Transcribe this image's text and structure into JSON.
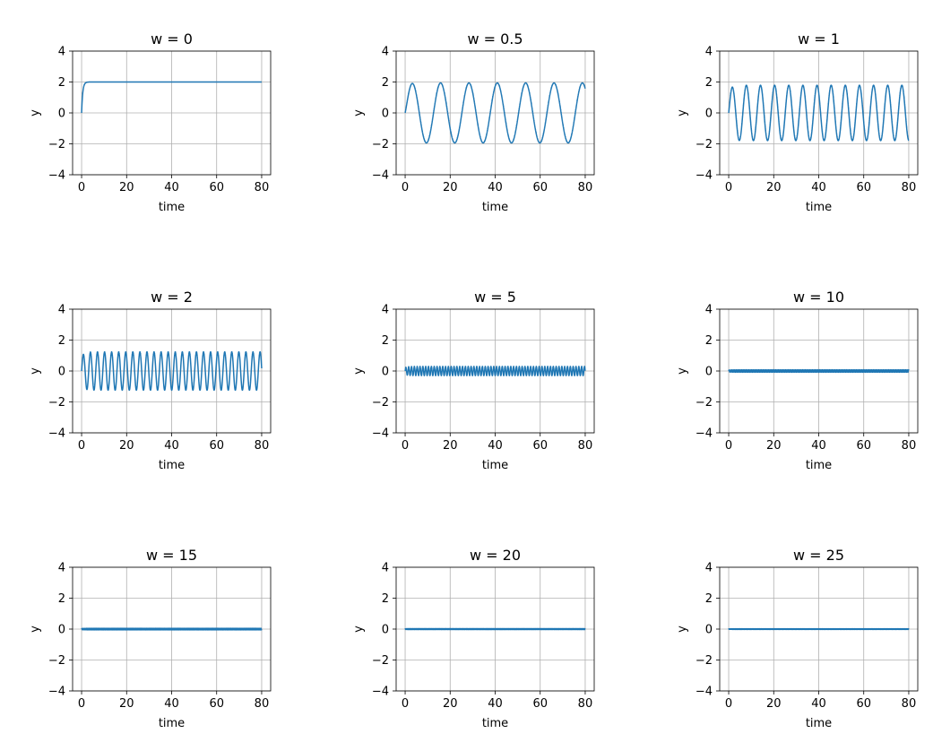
{
  "figure": {
    "background": "#ffffff",
    "series_color": "#1f77b4",
    "grid_color": "#b0b0b0"
  },
  "chart_data": [
    {
      "type": "line",
      "title": "w = 0",
      "xlabel": "time",
      "ylabel": "y",
      "xlim": [
        -4,
        84
      ],
      "ylim": [
        -4,
        4
      ],
      "xticks": [
        0,
        20,
        40,
        60,
        80
      ],
      "yticks": [
        -4,
        -2,
        0,
        2,
        4
      ],
      "xtick_labels": [
        "0",
        "20",
        "40",
        "60",
        "80"
      ],
      "ytick_labels": [
        "−4",
        "−2",
        "0",
        "2",
        "4"
      ],
      "grid": true,
      "series": [
        {
          "kind": "step_response",
          "w": 0,
          "x_range": [
            0,
            80
          ],
          "steady": 2.0,
          "time_constant": 0.5
        }
      ]
    },
    {
      "type": "line",
      "title": "w = 0.5",
      "xlabel": "time",
      "ylabel": "y",
      "xlim": [
        -4,
        84
      ],
      "ylim": [
        -4,
        4
      ],
      "xticks": [
        0,
        20,
        40,
        60,
        80
      ],
      "yticks": [
        -4,
        -2,
        0,
        2,
        4
      ],
      "xtick_labels": [
        "0",
        "20",
        "40",
        "60",
        "80"
      ],
      "ytick_labels": [
        "−4",
        "−2",
        "0",
        "2",
        "4"
      ],
      "grid": true,
      "series": [
        {
          "kind": "sine",
          "w": 0.5,
          "x_range": [
            0,
            80
          ],
          "amplitude": 1.94,
          "period": 12.6
        }
      ]
    },
    {
      "type": "line",
      "title": "w = 1",
      "xlabel": "time",
      "ylabel": "y",
      "xlim": [
        -4,
        84
      ],
      "ylim": [
        -4,
        4
      ],
      "xticks": [
        0,
        20,
        40,
        60,
        80
      ],
      "yticks": [
        -4,
        -2,
        0,
        2,
        4
      ],
      "xtick_labels": [
        "0",
        "20",
        "40",
        "60",
        "80"
      ],
      "ytick_labels": [
        "−4",
        "−2",
        "0",
        "2",
        "4"
      ],
      "grid": true,
      "series": [
        {
          "kind": "sine",
          "w": 1,
          "x_range": [
            0,
            80
          ],
          "amplitude": 1.79,
          "period": 6.28
        }
      ]
    },
    {
      "type": "line",
      "title": "w = 2",
      "xlabel": "time",
      "ylabel": "y",
      "xlim": [
        -4,
        84
      ],
      "ylim": [
        -4,
        4
      ],
      "xticks": [
        0,
        20,
        40,
        60,
        80
      ],
      "yticks": [
        -4,
        -2,
        0,
        2,
        4
      ],
      "xtick_labels": [
        "0",
        "20",
        "40",
        "60",
        "80"
      ],
      "ytick_labels": [
        "−4",
        "−2",
        "0",
        "2",
        "4"
      ],
      "grid": true,
      "series": [
        {
          "kind": "sine",
          "w": 2,
          "x_range": [
            0,
            80
          ],
          "amplitude": 1.24,
          "period": 3.14
        }
      ]
    },
    {
      "type": "line",
      "title": "w = 5",
      "xlabel": "time",
      "ylabel": "y",
      "xlim": [
        -4,
        84
      ],
      "ylim": [
        -4,
        4
      ],
      "xticks": [
        0,
        20,
        40,
        60,
        80
      ],
      "yticks": [
        -4,
        -2,
        0,
        2,
        4
      ],
      "xtick_labels": [
        "0",
        "20",
        "40",
        "60",
        "80"
      ],
      "ytick_labels": [
        "−4",
        "−2",
        "0",
        "2",
        "4"
      ],
      "grid": true,
      "series": [
        {
          "kind": "sine",
          "w": 5,
          "x_range": [
            0,
            80
          ],
          "amplitude": 0.3,
          "period": 1.26
        }
      ]
    },
    {
      "type": "line",
      "title": "w = 10",
      "xlabel": "time",
      "ylabel": "y",
      "xlim": [
        -4,
        84
      ],
      "ylim": [
        -4,
        4
      ],
      "xticks": [
        0,
        20,
        40,
        60,
        80
      ],
      "yticks": [
        -4,
        -2,
        0,
        2,
        4
      ],
      "xtick_labels": [
        "0",
        "20",
        "40",
        "60",
        "80"
      ],
      "ytick_labels": [
        "−4",
        "−2",
        "0",
        "2",
        "4"
      ],
      "grid": true,
      "series": [
        {
          "kind": "sine",
          "w": 10,
          "x_range": [
            0,
            80
          ],
          "amplitude": 0.08,
          "period": 0.628
        }
      ]
    },
    {
      "type": "line",
      "title": "w = 15",
      "xlabel": "time",
      "ylabel": "y",
      "xlim": [
        -4,
        84
      ],
      "ylim": [
        -4,
        4
      ],
      "xticks": [
        0,
        20,
        40,
        60,
        80
      ],
      "yticks": [
        -4,
        -2,
        0,
        2,
        4
      ],
      "xtick_labels": [
        "0",
        "20",
        "40",
        "60",
        "80"
      ],
      "ytick_labels": [
        "−4",
        "−2",
        "0",
        "2",
        "4"
      ],
      "grid": true,
      "series": [
        {
          "kind": "sine",
          "w": 15,
          "x_range": [
            0,
            80
          ],
          "amplitude": 0.05,
          "period": 0.419
        }
      ]
    },
    {
      "type": "line",
      "title": "w = 20",
      "xlabel": "time",
      "ylabel": "y",
      "xlim": [
        -4,
        84
      ],
      "ylim": [
        -4,
        4
      ],
      "xticks": [
        0,
        20,
        40,
        60,
        80
      ],
      "yticks": [
        -4,
        -2,
        0,
        2,
        4
      ],
      "xtick_labels": [
        "0",
        "20",
        "40",
        "60",
        "80"
      ],
      "ytick_labels": [
        "−4",
        "−2",
        "0",
        "2",
        "4"
      ],
      "grid": true,
      "series": [
        {
          "kind": "sine",
          "w": 20,
          "x_range": [
            0,
            80
          ],
          "amplitude": 0.03,
          "period": 0.314
        }
      ]
    },
    {
      "type": "line",
      "title": "w = 25",
      "xlabel": "time",
      "ylabel": "y",
      "xlim": [
        -4,
        84
      ],
      "ylim": [
        -4,
        4
      ],
      "xticks": [
        0,
        20,
        40,
        60,
        80
      ],
      "yticks": [
        -4,
        -2,
        0,
        2,
        4
      ],
      "xtick_labels": [
        "0",
        "20",
        "40",
        "60",
        "80"
      ],
      "ytick_labels": [
        "−4",
        "−2",
        "0",
        "2",
        "4"
      ],
      "grid": true,
      "series": [
        {
          "kind": "sine",
          "w": 25,
          "x_range": [
            0,
            80
          ],
          "amplitude": 0.02,
          "period": 0.251
        }
      ]
    }
  ]
}
